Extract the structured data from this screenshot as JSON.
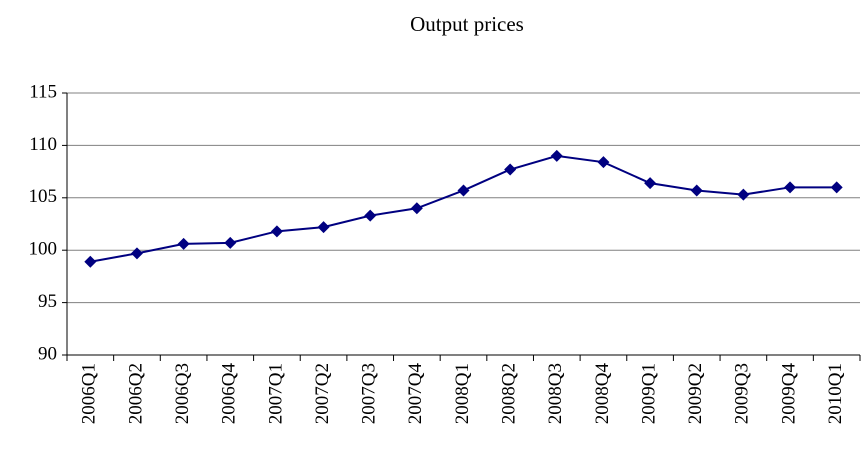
{
  "chart_data": {
    "type": "line",
    "title": "Output prices",
    "categories": [
      "2006Q1",
      "2006Q2",
      "2006Q3",
      "2006Q4",
      "2007Q1",
      "2007Q2",
      "2007Q3",
      "2007Q4",
      "2008Q1",
      "2008Q2",
      "2008Q3",
      "2008Q4",
      "2009Q1",
      "2009Q2",
      "2009Q3",
      "2009Q4",
      "2010Q1"
    ],
    "values": [
      98.9,
      99.7,
      100.6,
      100.7,
      101.8,
      102.2,
      103.3,
      104.0,
      105.7,
      107.7,
      109.0,
      108.4,
      106.4,
      105.7,
      105.3,
      106.0,
      106.0
    ],
    "color": "#000080",
    "ylim": [
      90,
      115
    ],
    "yticks": [
      90,
      95,
      100,
      105,
      110,
      115
    ],
    "grid": true
  }
}
